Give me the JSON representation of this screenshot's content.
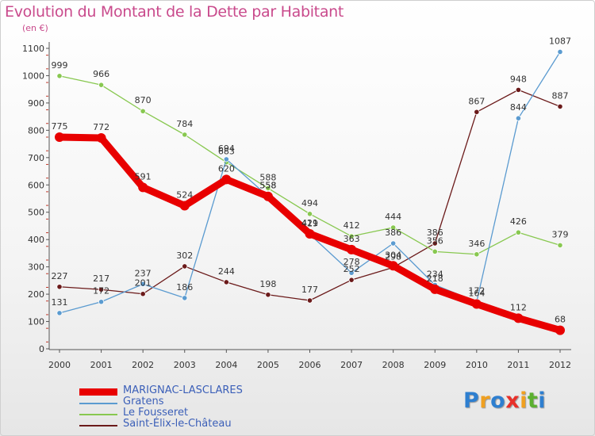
{
  "title": "Evolution du Montant de la Dette par Habitant",
  "unit_label": "(en €)",
  "brand": {
    "letters": [
      "P",
      "r",
      "o",
      "x",
      "i",
      "t",
      "i"
    ],
    "colors": [
      "#2e7fd0",
      "#f0a020",
      "#2e7fd0",
      "#e8302a",
      "#f0a020",
      "#5cb030",
      "#2e7fd0"
    ]
  },
  "chart_data": {
    "type": "line",
    "x": [
      "2000",
      "2001",
      "2002",
      "2003",
      "2004",
      "2005",
      "2006",
      "2007",
      "2008",
      "2009",
      "2010",
      "2011",
      "2012"
    ],
    "ylim": [
      0,
      1100
    ],
    "yticks": [
      "0",
      "100",
      "200",
      "300",
      "400",
      "500",
      "600",
      "700",
      "800",
      "900",
      "1000",
      "1100"
    ],
    "grid": false,
    "legend_position": "bottom-left",
    "series": [
      {
        "name": "MARIGNAC-LASCLARES",
        "color": "#e80000",
        "width": 9,
        "values": [
          775,
          772,
          591,
          524,
          620,
          558,
          421,
          363,
          304,
          218,
          164,
          112,
          68
        ],
        "labels": [
          "775",
          "772",
          "591",
          "524",
          "620",
          "558",
          "421",
          "363",
          "304",
          "218",
          "164",
          "112",
          "68"
        ]
      },
      {
        "name": "Gratens",
        "color": "#5b9bd0",
        "width": 1.3,
        "values": [
          131,
          172,
          237,
          186,
          694,
          558,
          419,
          278,
          386,
          234,
          172,
          844,
          1087
        ],
        "labels": [
          "131",
          "172",
          "237",
          "186",
          "694",
          "558",
          "419",
          "278",
          "386",
          "234",
          "172",
          "844",
          "1087"
        ]
      },
      {
        "name": "Le Fousseret",
        "color": "#88c850",
        "width": 1.3,
        "values": [
          999,
          966,
          870,
          784,
          683,
          588,
          494,
          412,
          444,
          356,
          346,
          426,
          379
        ],
        "labels": [
          "999",
          "966",
          "870",
          "784",
          "683",
          "588",
          "494",
          "412",
          "444",
          "356",
          "346",
          "426",
          "379"
        ]
      },
      {
        "name": "Saint-Élix-le-Château",
        "color": "#6b1a1a",
        "width": 1.3,
        "values": [
          227,
          217,
          201,
          302,
          244,
          198,
          177,
          252,
          298,
          386,
          867,
          948,
          887
        ],
        "labels": [
          "227",
          "217",
          "201",
          "302",
          "244",
          "198",
          "177",
          "252",
          "298",
          "386",
          "867",
          "948",
          "887"
        ]
      }
    ]
  }
}
